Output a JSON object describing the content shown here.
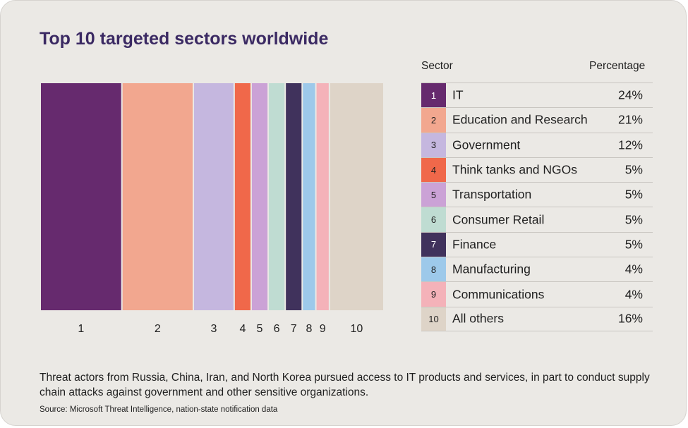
{
  "title": "Top 10 targeted sectors worldwide",
  "table_headers": {
    "sector": "Sector",
    "percentage": "Percentage"
  },
  "chart_data": {
    "type": "bar",
    "title": "Top 10 targeted sectors worldwide",
    "categories": [
      "1",
      "2",
      "3",
      "4",
      "5",
      "6",
      "7",
      "8",
      "9",
      "10"
    ],
    "series": [
      {
        "values": [
          24,
          21,
          12,
          5,
          5,
          5,
          5,
          4,
          4,
          16
        ]
      }
    ],
    "colors": [
      "#662a6e",
      "#f2a78f",
      "#c5b7df",
      "#f0684a",
      "#cba2d6",
      "#bfdcd2",
      "#40325c",
      "#9dc9ea",
      "#f4b2b9",
      "#ded4c8"
    ],
    "label_colors": [
      "#ffffff",
      "#1f1f1f",
      "#1f1f1f",
      "#1f1f1f",
      "#1f1f1f",
      "#1f1f1f",
      "#ffffff",
      "#1f1f1f",
      "#1f1f1f",
      "#1f1f1f"
    ]
  },
  "sectors": [
    {
      "num": "1",
      "name": "IT",
      "pct": "24%"
    },
    {
      "num": "2",
      "name": "Education and Research",
      "pct": "21%"
    },
    {
      "num": "3",
      "name": "Government",
      "pct": "12%"
    },
    {
      "num": "4",
      "name": "Think tanks and NGOs",
      "pct": "5%"
    },
    {
      "num": "5",
      "name": "Transportation",
      "pct": "5%"
    },
    {
      "num": "6",
      "name": "Consumer Retail",
      "pct": "5%"
    },
    {
      "num": "7",
      "name": "Finance",
      "pct": "5%"
    },
    {
      "num": "8",
      "name": "Manufacturing",
      "pct": "4%"
    },
    {
      "num": "9",
      "name": "Communications",
      "pct": "4%"
    },
    {
      "num": "10",
      "name": "All others",
      "pct": "16%"
    }
  ],
  "caption": "Threat actors from Russia, China, Iran, and North Korea pursued access to IT products and services, in part to conduct supply chain attacks against government and other sensitive organizations.",
  "source": "Source: Microsoft Threat Intelligence, nation-state notification data"
}
